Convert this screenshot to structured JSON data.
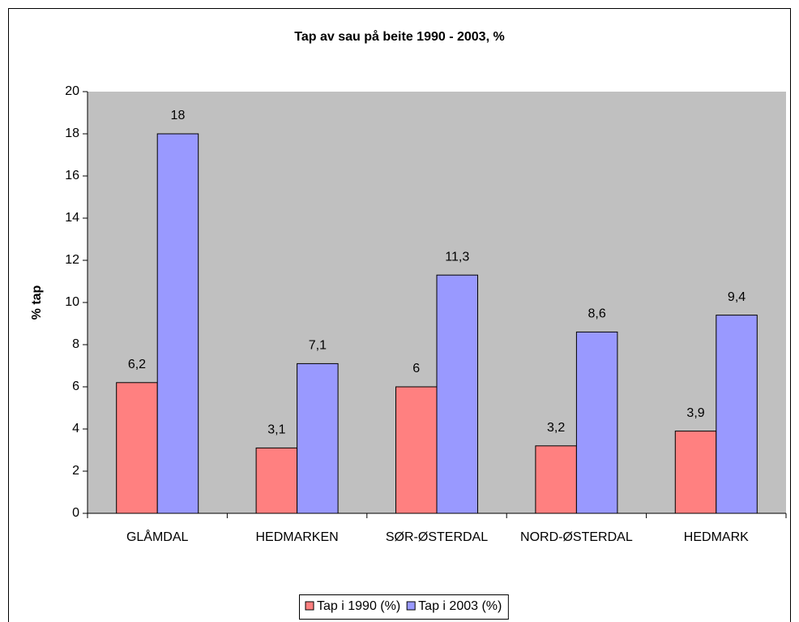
{
  "chart_data": {
    "type": "bar",
    "title": "Tap av sau på beite 1990 - 2003, %",
    "y_label": "% tap",
    "categories": [
      "GLÅMDAL",
      "HEDMARKEN",
      "SØR-ØSTERDAL",
      "NORD-ØSTERDAL",
      "HEDMARK"
    ],
    "series": [
      {
        "name": "Tap i 1990 (%)",
        "color": "#ff8080",
        "values": [
          6.2,
          3.1,
          6,
          3.2,
          3.9
        ],
        "value_labels": [
          "6,2",
          "3,1",
          "6",
          "3,2",
          "3,9"
        ]
      },
      {
        "name": "Tap i 2003 (%)",
        "color": "#9999ff",
        "values": [
          18,
          7.1,
          11.3,
          8.6,
          9.4
        ],
        "value_labels": [
          "18",
          "7,1",
          "11,3",
          "8,6",
          "9,4"
        ]
      }
    ],
    "ylim": [
      0,
      20
    ],
    "yticks": [
      0,
      2,
      4,
      6,
      8,
      10,
      12,
      14,
      16,
      18,
      20
    ],
    "plot_background": "#c0c0c0",
    "legend": "bottom"
  }
}
